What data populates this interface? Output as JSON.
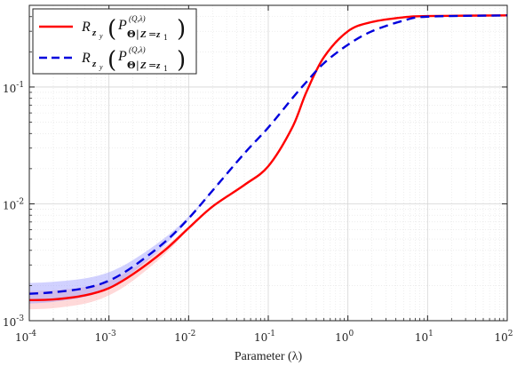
{
  "chart_data": {
    "type": "line",
    "title": "",
    "xlabel": "Parameter (λ)",
    "ylabel": "",
    "xscale": "log",
    "yscale": "log",
    "xlim": [
      0.0001,
      100
    ],
    "ylim": [
      0.001,
      0.5
    ],
    "x_tick_labels": [
      {
        "value": 0.0001,
        "base": "10",
        "exp": "-4"
      },
      {
        "value": 0.001,
        "base": "10",
        "exp": "-3"
      },
      {
        "value": 0.01,
        "base": "10",
        "exp": "-2"
      },
      {
        "value": 0.1,
        "base": "10",
        "exp": "-1"
      },
      {
        "value": 1,
        "base": "10",
        "exp": "0"
      },
      {
        "value": 10,
        "base": "10",
        "exp": "1"
      },
      {
        "value": 100,
        "base": "10",
        "exp": "2"
      }
    ],
    "y_tick_labels": [
      {
        "value": 0.001,
        "base": "10",
        "exp": "-3"
      },
      {
        "value": 0.01,
        "base": "10",
        "exp": "-2"
      },
      {
        "value": 0.1,
        "base": "10",
        "exp": "-1"
      }
    ],
    "grid": true,
    "legend_position": "top-left",
    "series": [
      {
        "name": "R_{Z_y}(P^{(Q,λ)}_{Θ|Z=z_1})",
        "color": "#ff0000",
        "line_style": "solid",
        "x": [
          0.0001,
          0.0002,
          0.0005,
          0.001,
          0.002,
          0.005,
          0.01,
          0.02,
          0.05,
          0.1,
          0.2,
          0.3,
          0.5,
          1,
          2,
          5,
          10,
          100
        ],
        "y": [
          0.0015,
          0.00152,
          0.00165,
          0.0019,
          0.0025,
          0.004,
          0.0062,
          0.0095,
          0.0145,
          0.021,
          0.045,
          0.09,
          0.18,
          0.3,
          0.36,
          0.395,
          0.405,
          0.41
        ],
        "band_lower": [
          0.00125,
          0.00128,
          0.0014,
          0.00165,
          0.0022,
          0.0037,
          0.006,
          0.0093,
          0.0143,
          0.0208,
          0.0448,
          0.0898,
          0.1798,
          0.2998,
          0.3598,
          0.3948,
          0.4048,
          0.4098
        ],
        "band_upper": [
          0.0018,
          0.00182,
          0.00195,
          0.0022,
          0.0028,
          0.0043,
          0.0064,
          0.0097,
          0.0147,
          0.0212,
          0.0452,
          0.0902,
          0.1802,
          0.3002,
          0.3602,
          0.3952,
          0.4052,
          0.4102
        ],
        "band_color": "#ffaaaa"
      },
      {
        "name": "R_{Z_y}(P^{(Q,λ)}_{Θ|Z=z_1})",
        "color": "#0000dd",
        "line_style": "dashed",
        "x": [
          0.0001,
          0.0002,
          0.0005,
          0.001,
          0.002,
          0.005,
          0.01,
          0.02,
          0.05,
          0.1,
          0.2,
          0.3,
          0.5,
          1,
          2,
          5,
          10,
          100
        ],
        "y": [
          0.0017,
          0.00175,
          0.0019,
          0.0022,
          0.0029,
          0.0047,
          0.0075,
          0.013,
          0.027,
          0.045,
          0.08,
          0.11,
          0.16,
          0.23,
          0.3,
          0.37,
          0.4,
          0.41
        ],
        "band_lower": [
          0.0014,
          0.00145,
          0.0016,
          0.0019,
          0.0026,
          0.0044,
          0.0073,
          0.0128,
          0.0268,
          0.0448,
          0.0798,
          0.1098,
          0.1598,
          0.2298,
          0.2998,
          0.3698,
          0.3998,
          0.4098
        ],
        "band_upper": [
          0.0021,
          0.00215,
          0.0023,
          0.0026,
          0.0033,
          0.0051,
          0.0078,
          0.0132,
          0.0272,
          0.0452,
          0.0802,
          0.1102,
          0.1602,
          0.2302,
          0.3002,
          0.3702,
          0.4002,
          0.4102
        ],
        "band_color": "#9999ff"
      }
    ]
  }
}
